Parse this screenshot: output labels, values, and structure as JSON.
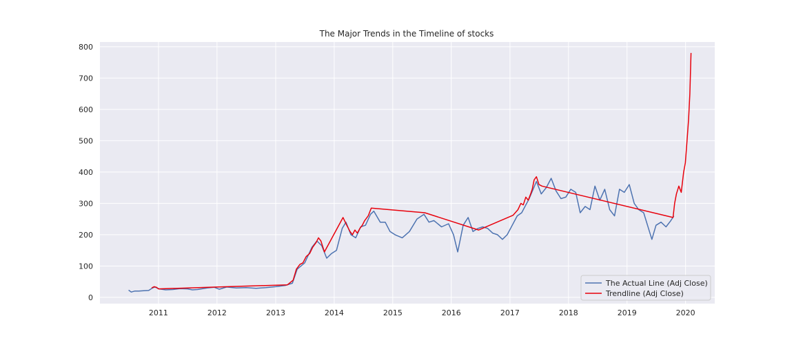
{
  "chart_data": {
    "type": "line",
    "title": "The Major Trends in the Timeline of stocks",
    "xlabel": "",
    "ylabel": "",
    "x_axis": "time",
    "xlim": [
      "2010-01-01",
      "2020-07-01"
    ],
    "ylim": [
      -20,
      815
    ],
    "x_ticks": [
      "2011",
      "2012",
      "2013",
      "2014",
      "2015",
      "2016",
      "2017",
      "2018",
      "2019",
      "2020"
    ],
    "y_ticks": [
      0,
      100,
      200,
      300,
      400,
      500,
      600,
      700,
      800
    ],
    "grid": true,
    "legend": "bottom-right",
    "colors": {
      "background": "#eaeaf2",
      "grid": "#ffffff",
      "actual": "#4c72b0",
      "trend": "#e8000b"
    },
    "series": [
      {
        "name": "The Actual Line (Adj Close)",
        "color": "#4c72b0",
        "points": [
          [
            "2010-06-29",
            23
          ],
          [
            "2010-07-15",
            17
          ],
          [
            "2010-08-05",
            20
          ],
          [
            "2010-09-01",
            20
          ],
          [
            "2010-10-01",
            21
          ],
          [
            "2010-11-01",
            22
          ],
          [
            "2010-11-25",
            30
          ],
          [
            "2010-12-10",
            33
          ],
          [
            "2011-01-05",
            27
          ],
          [
            "2011-02-15",
            24
          ],
          [
            "2011-04-01",
            25
          ],
          [
            "2011-05-15",
            28
          ],
          [
            "2011-07-01",
            27
          ],
          [
            "2011-08-01",
            24
          ],
          [
            "2011-09-01",
            25
          ],
          [
            "2011-11-01",
            30
          ],
          [
            "2011-12-15",
            32
          ],
          [
            "2012-01-15",
            26
          ],
          [
            "2012-03-01",
            33
          ],
          [
            "2012-05-01",
            30
          ],
          [
            "2012-07-01",
            31
          ],
          [
            "2012-09-01",
            29
          ],
          [
            "2012-11-01",
            31
          ],
          [
            "2013-01-01",
            34
          ],
          [
            "2013-03-01",
            38
          ],
          [
            "2013-04-15",
            45
          ],
          [
            "2013-05-15",
            90
          ],
          [
            "2013-07-01",
            110
          ],
          [
            "2013-08-15",
            160
          ],
          [
            "2013-09-15",
            180
          ],
          [
            "2013-10-15",
            165
          ],
          [
            "2013-11-15",
            125
          ],
          [
            "2013-12-15",
            140
          ],
          [
            "2014-01-15",
            150
          ],
          [
            "2014-02-20",
            220
          ],
          [
            "2014-03-15",
            240
          ],
          [
            "2014-04-15",
            200
          ],
          [
            "2014-05-15",
            190
          ],
          [
            "2014-06-15",
            225
          ],
          [
            "2014-07-15",
            230
          ],
          [
            "2014-08-15",
            265
          ],
          [
            "2014-09-05",
            275
          ],
          [
            "2014-10-15",
            240
          ],
          [
            "2014-11-15",
            240
          ],
          [
            "2014-12-15",
            210
          ],
          [
            "2015-01-15",
            200
          ],
          [
            "2015-03-01",
            190
          ],
          [
            "2015-04-15",
            210
          ],
          [
            "2015-06-01",
            250
          ],
          [
            "2015-07-15",
            265
          ],
          [
            "2015-08-15",
            240
          ],
          [
            "2015-09-15",
            245
          ],
          [
            "2015-11-01",
            225
          ],
          [
            "2015-12-15",
            235
          ],
          [
            "2016-01-15",
            200
          ],
          [
            "2016-02-10",
            145
          ],
          [
            "2016-03-15",
            230
          ],
          [
            "2016-04-15",
            255
          ],
          [
            "2016-05-15",
            210
          ],
          [
            "2016-06-15",
            220
          ],
          [
            "2016-07-15",
            225
          ],
          [
            "2016-08-15",
            220
          ],
          [
            "2016-09-15",
            205
          ],
          [
            "2016-10-15",
            200
          ],
          [
            "2016-11-15",
            185
          ],
          [
            "2016-12-15",
            200
          ],
          [
            "2017-01-15",
            230
          ],
          [
            "2017-02-15",
            260
          ],
          [
            "2017-03-15",
            270
          ],
          [
            "2017-05-01",
            315
          ],
          [
            "2017-06-15",
            370
          ],
          [
            "2017-07-15",
            330
          ],
          [
            "2017-08-15",
            350
          ],
          [
            "2017-09-15",
            380
          ],
          [
            "2017-10-15",
            340
          ],
          [
            "2017-11-15",
            315
          ],
          [
            "2017-12-15",
            320
          ],
          [
            "2018-01-15",
            345
          ],
          [
            "2018-02-15",
            335
          ],
          [
            "2018-03-15",
            270
          ],
          [
            "2018-04-15",
            290
          ],
          [
            "2018-05-15",
            280
          ],
          [
            "2018-06-15",
            355
          ],
          [
            "2018-07-15",
            310
          ],
          [
            "2018-08-15",
            345
          ],
          [
            "2018-09-15",
            280
          ],
          [
            "2018-10-15",
            260
          ],
          [
            "2018-11-15",
            345
          ],
          [
            "2018-12-15",
            335
          ],
          [
            "2019-01-15",
            360
          ],
          [
            "2019-02-15",
            300
          ],
          [
            "2019-03-15",
            280
          ],
          [
            "2019-04-15",
            270
          ],
          [
            "2019-05-15",
            220
          ],
          [
            "2019-06-05",
            185
          ],
          [
            "2019-07-01",
            230
          ],
          [
            "2019-08-01",
            240
          ],
          [
            "2019-09-01",
            225
          ],
          [
            "2019-10-01",
            245
          ],
          [
            "2019-10-20",
            260
          ]
        ]
      },
      {
        "name": "Trendline (Adj Close)",
        "color": "#e8000b",
        "points": [
          [
            "2010-11-20",
            30
          ],
          [
            "2010-12-05",
            34
          ],
          [
            "2010-12-20",
            32
          ],
          [
            "2011-01-01",
            27
          ],
          [
            "2012-01-01",
            33
          ],
          [
            "2013-03-15",
            40
          ],
          [
            "2013-04-20",
            55
          ],
          [
            "2013-05-10",
            90
          ],
          [
            "2013-06-01",
            105
          ],
          [
            "2013-06-20",
            110
          ],
          [
            "2013-07-10",
            130
          ],
          [
            "2013-08-01",
            140
          ],
          [
            "2013-08-20",
            160
          ],
          [
            "2013-09-10",
            175
          ],
          [
            "2013-09-25",
            190
          ],
          [
            "2013-10-10",
            180
          ],
          [
            "2013-11-01",
            145
          ],
          [
            "2014-02-25",
            255
          ],
          [
            "2014-03-20",
            230
          ],
          [
            "2014-04-10",
            210
          ],
          [
            "2014-04-25",
            200
          ],
          [
            "2014-05-10",
            215
          ],
          [
            "2014-05-25",
            205
          ],
          [
            "2014-06-10",
            220
          ],
          [
            "2014-06-25",
            230
          ],
          [
            "2014-07-10",
            245
          ],
          [
            "2014-08-01",
            260
          ],
          [
            "2014-08-20",
            285
          ],
          [
            "2015-07-20",
            270
          ],
          [
            "2016-06-20",
            215
          ],
          [
            "2017-01-20",
            262
          ],
          [
            "2017-02-20",
            280
          ],
          [
            "2017-03-10",
            300
          ],
          [
            "2017-03-25",
            295
          ],
          [
            "2017-04-10",
            320
          ],
          [
            "2017-04-25",
            310
          ],
          [
            "2017-05-10",
            330
          ],
          [
            "2017-05-20",
            345
          ],
          [
            "2017-06-01",
            375
          ],
          [
            "2017-06-15",
            385
          ],
          [
            "2017-07-01",
            360
          ],
          [
            "2017-07-20",
            355
          ],
          [
            "2019-10-15",
            255
          ],
          [
            "2019-10-25",
            300
          ],
          [
            "2019-11-05",
            330
          ],
          [
            "2019-11-20",
            355
          ],
          [
            "2019-12-05",
            335
          ],
          [
            "2019-12-20",
            400
          ],
          [
            "2019-12-31",
            430
          ],
          [
            "2020-01-10",
            500
          ],
          [
            "2020-01-20",
            570
          ],
          [
            "2020-01-28",
            650
          ],
          [
            "2020-02-04",
            780
          ]
        ]
      }
    ]
  }
}
